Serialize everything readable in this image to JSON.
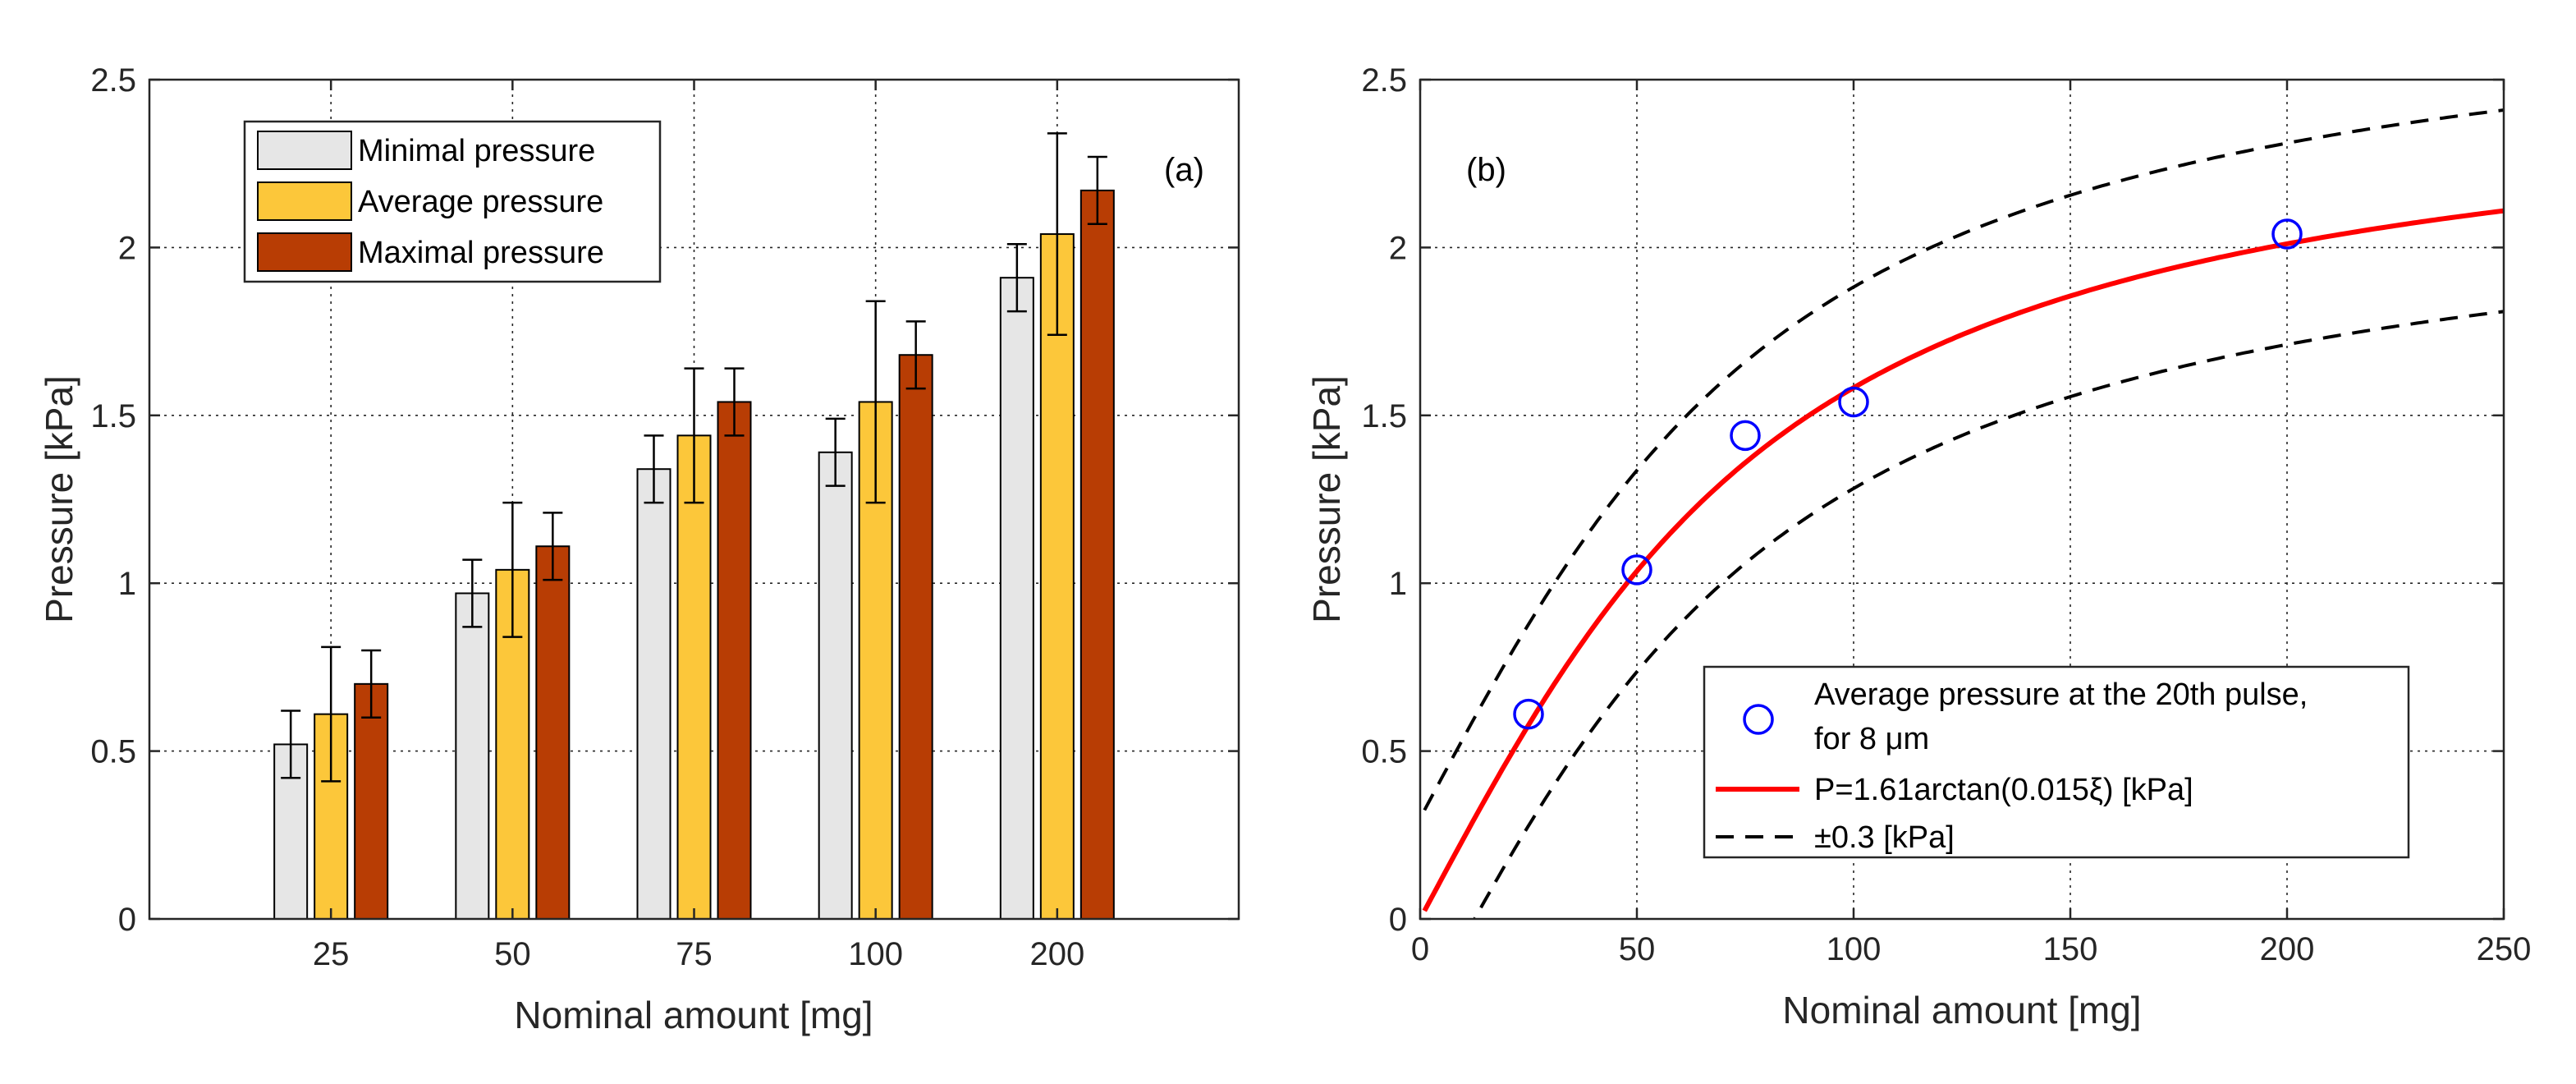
{
  "colors": {
    "minimal": "#e6e6e6",
    "average": "#fcc73a",
    "maximal": "#b83d04",
    "fit_line": "#ff0000",
    "markers": "#0000ff",
    "band": "#000000"
  },
  "chart_data": [
    {
      "id": "a",
      "type": "bar",
      "panel_label": "(a)",
      "xlabel": "Nominal amount [mg]",
      "ylabel": "Pressure [kPa]",
      "categories": [
        "25",
        "50",
        "75",
        "100",
        "200"
      ],
      "ylim": [
        0,
        2.5
      ],
      "yticks": [
        "0",
        "0.5",
        "1",
        "1.5",
        "2",
        "2.5"
      ],
      "grid": true,
      "legend_position": "top-left",
      "series": [
        {
          "name": "Minimal pressure",
          "values": [
            0.52,
            0.97,
            1.34,
            1.39,
            1.91
          ],
          "errors": [
            0.1,
            0.1,
            0.1,
            0.1,
            0.1
          ]
        },
        {
          "name": "Average pressure",
          "values": [
            0.61,
            1.04,
            1.44,
            1.54,
            2.04
          ],
          "errors": [
            0.2,
            0.2,
            0.2,
            0.3,
            0.3
          ]
        },
        {
          "name": "Maximal pressure",
          "values": [
            0.7,
            1.11,
            1.54,
            1.68,
            2.17
          ],
          "errors": [
            0.1,
            0.1,
            0.1,
            0.1,
            0.1
          ]
        }
      ]
    },
    {
      "id": "b",
      "type": "line",
      "panel_label": "(b)",
      "xlabel": "Nominal amount [mg]",
      "ylabel": "Pressure [kPa]",
      "xlim": [
        0,
        250
      ],
      "ylim": [
        0,
        2.5
      ],
      "xticks": [
        "0",
        "50",
        "100",
        "150",
        "200",
        "250"
      ],
      "yticks": [
        "0",
        "0.5",
        "1",
        "1.5",
        "2",
        "2.5"
      ],
      "grid": true,
      "legend_position": "bottom-right",
      "fit": {
        "amplitude": 1.61,
        "k": 0.015,
        "offset": 0.3
      },
      "series": [
        {
          "name": "Average pressure at the 20th pulse,",
          "name_line2": "for 8 μm",
          "marker": "circle",
          "x": [
            25,
            50,
            75,
            100,
            200
          ],
          "y": [
            0.61,
            1.04,
            1.44,
            1.54,
            2.04
          ]
        },
        {
          "name": "P=1.61arctan(0.015ξ) [kPa]",
          "style": "solid"
        },
        {
          "name": "±0.3 [kPa]",
          "style": "dashed"
        }
      ]
    }
  ]
}
